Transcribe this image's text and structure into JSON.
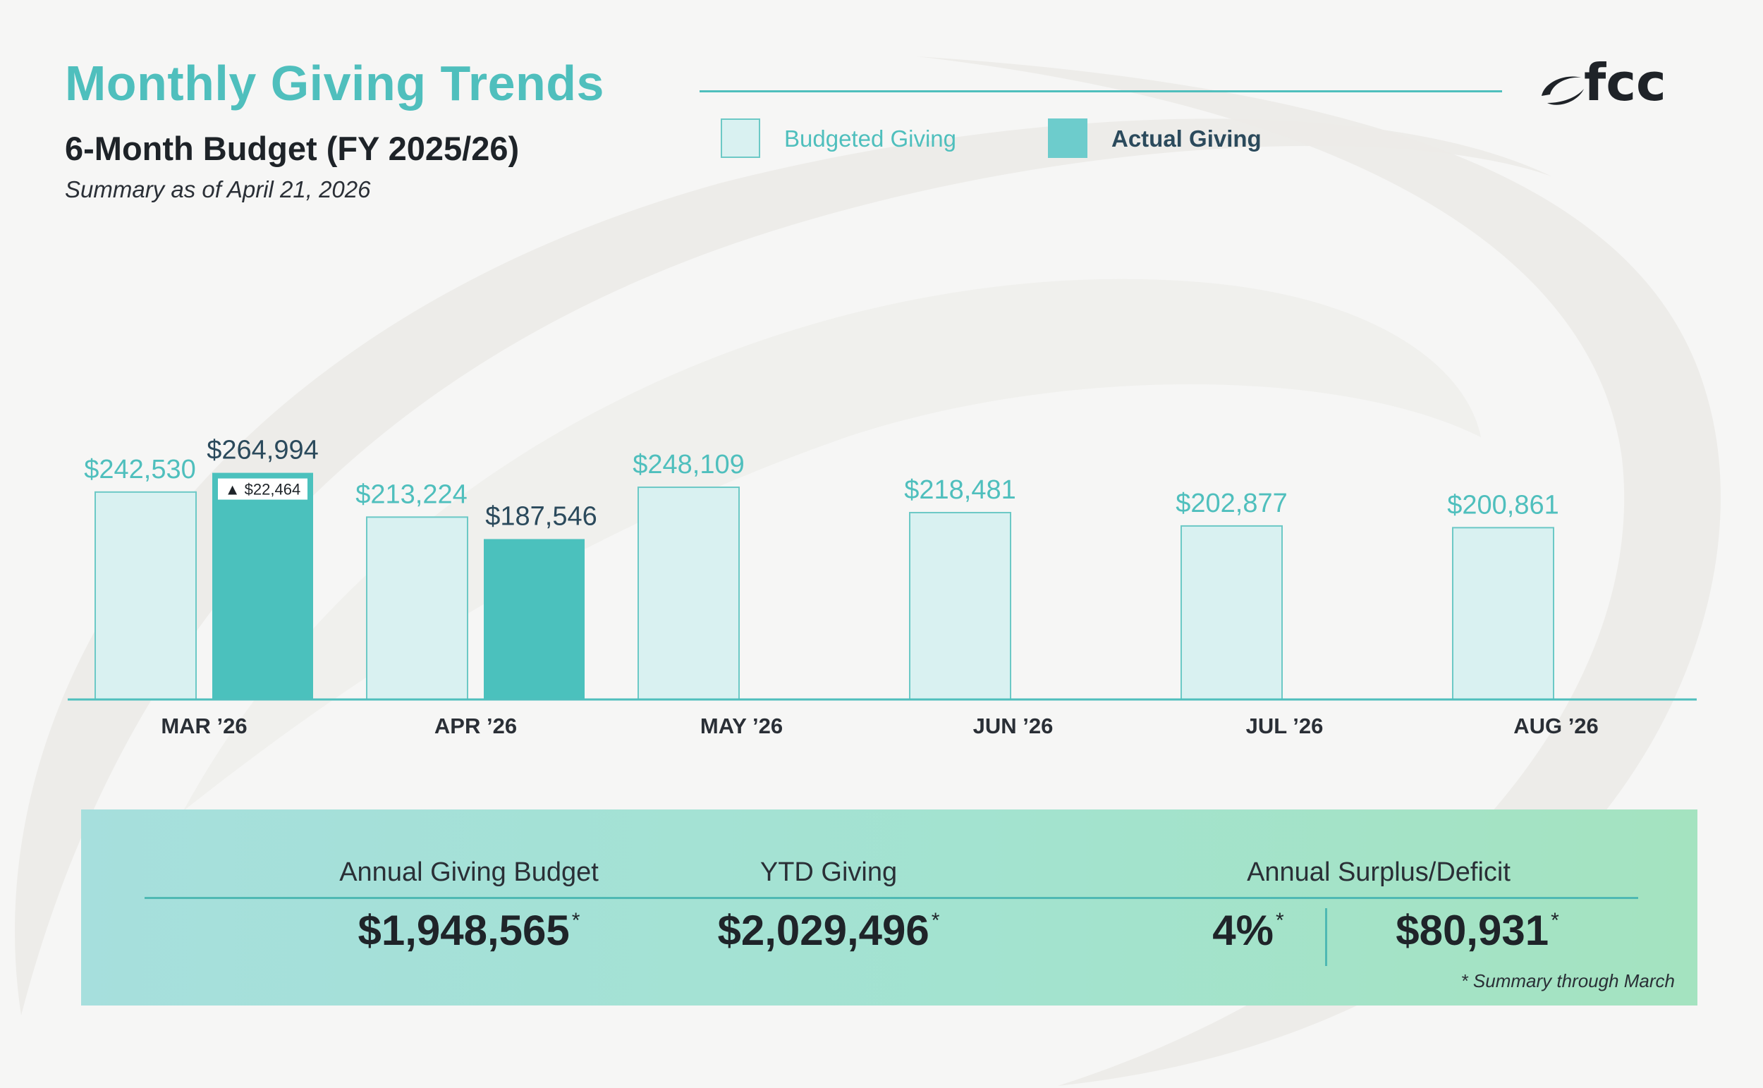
{
  "header": {
    "title": "Monthly Giving Trends",
    "subtitle": "6-Month Budget (FY 2025/26)",
    "as_of": "Summary as of April 21, 2026",
    "logo_text": "fcc"
  },
  "legend": {
    "budget_label": "Budgeted Giving",
    "actual_label": "Actual Giving"
  },
  "colors": {
    "accent": "#4fbfbd",
    "budget_fill": "#d9f1f1",
    "budget_stroke": "#6cc9c6",
    "actual_fill": "#4bc1bd",
    "actual_label": "#2b4a5c"
  },
  "chart_data": {
    "type": "bar",
    "title": "6-Month Budget (FY 2025/26)",
    "categories": [
      "MAR ’26",
      "APR ’26",
      "MAY ’26",
      "JUN ’26",
      "JUL ’26",
      "AUG ’26"
    ],
    "series": [
      {
        "name": "Budgeted Giving",
        "values": [
          242530,
          213224,
          248109,
          218481,
          202877,
          200861
        ],
        "labels": [
          "$242,530",
          "$213,224",
          "$248,109",
          "$218,481",
          "$202,877",
          "$200,861"
        ]
      },
      {
        "name": "Actual Giving",
        "values": [
          264994,
          187546,
          null,
          null,
          null,
          null
        ],
        "labels": [
          "$264,994",
          "$187,546",
          "",
          "",
          "",
          ""
        ]
      }
    ],
    "annotations": [
      {
        "category": "MAR ’26",
        "series": "Actual Giving",
        "text": "▲ $22,464",
        "value": 22464
      }
    ],
    "ylim": [
      0,
      300000
    ],
    "grid": false,
    "legend_position": "top"
  },
  "summary": {
    "budget_label": "Annual Giving Budget",
    "budget_value": "$1,948,565",
    "ytd_label": "YTD Giving",
    "ytd_value": "$2,029,496",
    "surplus_label": "Annual Surplus/Deficit",
    "surplus_percent": "4%",
    "surplus_value": "$80,931",
    "asterisk": "*",
    "footnote": "*  Summary through March"
  }
}
